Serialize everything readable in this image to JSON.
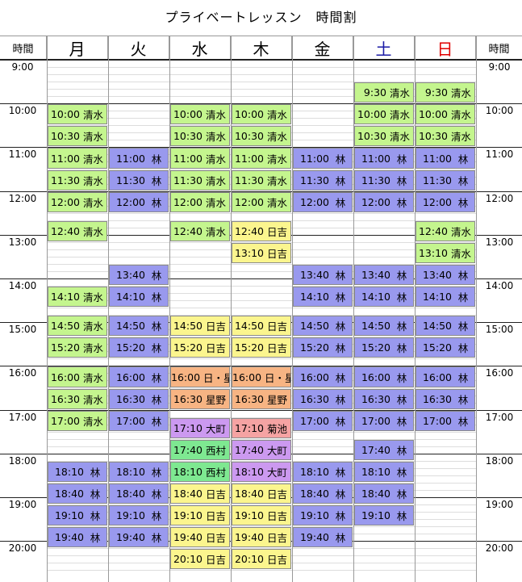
{
  "title": "プライベートレッスン　時間割",
  "time_header": "時間",
  "days": [
    {
      "label": "月",
      "color": "#000000"
    },
    {
      "label": "火",
      "color": "#000000"
    },
    {
      "label": "水",
      "color": "#000000"
    },
    {
      "label": "木",
      "color": "#000000"
    },
    {
      "label": "金",
      "color": "#000000"
    },
    {
      "label": "土",
      "color": "#1a1aa6"
    },
    {
      "label": "日",
      "color": "#e00000"
    }
  ],
  "hours": [
    "9:00",
    "10:00",
    "11:00",
    "12:00",
    "13:00",
    "14:00",
    "15:00",
    "16:00",
    "17:00",
    "18:00",
    "19:00",
    "20:00"
  ],
  "colors": {
    "green": "#c4f58e",
    "blue": "#9999ee",
    "yellow": "#fbf58e",
    "orange": "#f7b483",
    "purple": "#cc99f0",
    "pink": "#f5a3a3",
    "mint": "#7ee891"
  },
  "lessons": [
    {
      "day": 0,
      "time": "10:00",
      "start": "10:00",
      "end": "10:30",
      "name": "清水",
      "c": "green"
    },
    {
      "day": 0,
      "time": "10:30",
      "start": "10:30",
      "end": "11:00",
      "name": "清水",
      "c": "green"
    },
    {
      "day": 0,
      "time": "11:00",
      "start": "11:00",
      "end": "11:30",
      "name": "清水",
      "c": "green"
    },
    {
      "day": 0,
      "time": "11:30",
      "start": "11:30",
      "end": "12:00",
      "name": "清水",
      "c": "green"
    },
    {
      "day": 0,
      "time": "12:00",
      "start": "12:00",
      "end": "12:30",
      "name": "清水",
      "c": "green"
    },
    {
      "day": 0,
      "time": "12:40",
      "start": "12:40",
      "end": "13:10",
      "name": "清水",
      "c": "green"
    },
    {
      "day": 0,
      "time": "14:10",
      "start": "14:10",
      "end": "14:40",
      "name": "清水",
      "c": "green"
    },
    {
      "day": 0,
      "time": "14:50",
      "start": "14:50",
      "end": "15:20",
      "name": "清水",
      "c": "green"
    },
    {
      "day": 0,
      "time": "15:20",
      "start": "15:20",
      "end": "15:50",
      "name": "清水",
      "c": "green"
    },
    {
      "day": 0,
      "time": "16:00",
      "start": "16:00",
      "end": "16:30",
      "name": "清水",
      "c": "green"
    },
    {
      "day": 0,
      "time": "16:30",
      "start": "16:30",
      "end": "17:00",
      "name": "清水",
      "c": "green"
    },
    {
      "day": 0,
      "time": "17:00",
      "start": "17:00",
      "end": "17:30",
      "name": "清水",
      "c": "green"
    },
    {
      "day": 0,
      "time": "18:10",
      "start": "18:10",
      "end": "18:40",
      "name": "林",
      "c": "blue"
    },
    {
      "day": 0,
      "time": "18:40",
      "start": "18:40",
      "end": "19:10",
      "name": "林",
      "c": "blue"
    },
    {
      "day": 0,
      "time": "19:10",
      "start": "19:10",
      "end": "19:40",
      "name": "林",
      "c": "blue"
    },
    {
      "day": 0,
      "time": "19:40",
      "start": "19:40",
      "end": "20:10",
      "name": "林",
      "c": "blue"
    },
    {
      "day": 1,
      "time": "11:00",
      "start": "11:00",
      "end": "11:30",
      "name": "林",
      "c": "blue"
    },
    {
      "day": 1,
      "time": "11:30",
      "start": "11:30",
      "end": "12:00",
      "name": "林",
      "c": "blue"
    },
    {
      "day": 1,
      "time": "12:00",
      "start": "12:00",
      "end": "12:30",
      "name": "林",
      "c": "blue"
    },
    {
      "day": 1,
      "time": "13:40",
      "start": "13:40",
      "end": "14:10",
      "name": "林",
      "c": "blue"
    },
    {
      "day": 1,
      "time": "14:10",
      "start": "14:10",
      "end": "14:40",
      "name": "林",
      "c": "blue"
    },
    {
      "day": 1,
      "time": "14:50",
      "start": "14:50",
      "end": "15:20",
      "name": "林",
      "c": "blue"
    },
    {
      "day": 1,
      "time": "15:20",
      "start": "15:20",
      "end": "15:50",
      "name": "林",
      "c": "blue"
    },
    {
      "day": 1,
      "time": "16:00",
      "start": "16:00",
      "end": "16:30",
      "name": "林",
      "c": "blue"
    },
    {
      "day": 1,
      "time": "16:30",
      "start": "16:30",
      "end": "17:00",
      "name": "林",
      "c": "blue"
    },
    {
      "day": 1,
      "time": "17:00",
      "start": "17:00",
      "end": "17:30",
      "name": "林",
      "c": "blue"
    },
    {
      "day": 1,
      "time": "18:10",
      "start": "18:10",
      "end": "18:40",
      "name": "林",
      "c": "blue"
    },
    {
      "day": 1,
      "time": "18:40",
      "start": "18:40",
      "end": "19:10",
      "name": "林",
      "c": "blue"
    },
    {
      "day": 1,
      "time": "19:10",
      "start": "19:10",
      "end": "19:40",
      "name": "林",
      "c": "blue"
    },
    {
      "day": 1,
      "time": "19:40",
      "start": "19:40",
      "end": "20:10",
      "name": "林",
      "c": "blue"
    },
    {
      "day": 2,
      "time": "10:00",
      "start": "10:00",
      "end": "10:30",
      "name": "清水",
      "c": "green"
    },
    {
      "day": 2,
      "time": "10:30",
      "start": "10:30",
      "end": "11:00",
      "name": "清水",
      "c": "green"
    },
    {
      "day": 2,
      "time": "11:00",
      "start": "11:00",
      "end": "11:30",
      "name": "清水",
      "c": "green"
    },
    {
      "day": 2,
      "time": "11:30",
      "start": "11:30",
      "end": "12:00",
      "name": "清水",
      "c": "green"
    },
    {
      "day": 2,
      "time": "12:00",
      "start": "12:00",
      "end": "12:30",
      "name": "清水",
      "c": "green"
    },
    {
      "day": 2,
      "time": "12:40",
      "start": "12:40",
      "end": "13:10",
      "name": "清水",
      "c": "green"
    },
    {
      "day": 2,
      "time": "14:50",
      "start": "14:50",
      "end": "15:20",
      "name": "日吉",
      "c": "yellow"
    },
    {
      "day": 2,
      "time": "15:20",
      "start": "15:20",
      "end": "15:50",
      "name": "日吉",
      "c": "yellow"
    },
    {
      "day": 2,
      "time": "16:00",
      "start": "16:00",
      "end": "16:30",
      "name": "日・星",
      "c": "orange"
    },
    {
      "day": 2,
      "time": "16:30",
      "start": "16:30",
      "end": "17:00",
      "name": "星野",
      "c": "orange"
    },
    {
      "day": 2,
      "time": "17:10",
      "start": "17:10",
      "end": "17:40",
      "name": "大町",
      "c": "purple"
    },
    {
      "day": 2,
      "time": "17:40",
      "start": "17:40",
      "end": "18:10",
      "name": "西村",
      "c": "mint"
    },
    {
      "day": 2,
      "time": "18:10",
      "start": "18:10",
      "end": "18:40",
      "name": "西村",
      "c": "mint"
    },
    {
      "day": 2,
      "time": "18:40",
      "start": "18:40",
      "end": "19:10",
      "name": "日吉",
      "c": "yellow"
    },
    {
      "day": 2,
      "time": "19:10",
      "start": "19:10",
      "end": "19:40",
      "name": "日吉",
      "c": "yellow"
    },
    {
      "day": 2,
      "time": "19:40",
      "start": "19:40",
      "end": "20:10",
      "name": "日吉",
      "c": "yellow"
    },
    {
      "day": 2,
      "time": "20:10",
      "start": "20:10",
      "end": "20:40",
      "name": "日吉",
      "c": "yellow"
    },
    {
      "day": 3,
      "time": "10:00",
      "start": "10:00",
      "end": "10:30",
      "name": "清水",
      "c": "green"
    },
    {
      "day": 3,
      "time": "10:30",
      "start": "10:30",
      "end": "11:00",
      "name": "清水",
      "c": "green"
    },
    {
      "day": 3,
      "time": "11:00",
      "start": "11:00",
      "end": "11:30",
      "name": "清水",
      "c": "green"
    },
    {
      "day": 3,
      "time": "11:30",
      "start": "11:30",
      "end": "12:00",
      "name": "清水",
      "c": "green"
    },
    {
      "day": 3,
      "time": "12:00",
      "start": "12:00",
      "end": "12:30",
      "name": "清水",
      "c": "green"
    },
    {
      "day": 3,
      "time": "12:40",
      "start": "12:40",
      "end": "13:10",
      "name": "日吉",
      "c": "yellow"
    },
    {
      "day": 3,
      "time": "13:10",
      "start": "13:10",
      "end": "13:40",
      "name": "日吉",
      "c": "yellow"
    },
    {
      "day": 3,
      "time": "14:50",
      "start": "14:50",
      "end": "15:20",
      "name": "日吉",
      "c": "yellow"
    },
    {
      "day": 3,
      "time": "15:20",
      "start": "15:20",
      "end": "15:50",
      "name": "日吉",
      "c": "yellow"
    },
    {
      "day": 3,
      "time": "16:00",
      "start": "16:00",
      "end": "16:30",
      "name": "日・星",
      "c": "orange"
    },
    {
      "day": 3,
      "time": "16:30",
      "start": "16:30",
      "end": "17:00",
      "name": "星野",
      "c": "orange"
    },
    {
      "day": 3,
      "time": "17:10",
      "start": "17:10",
      "end": "17:40",
      "name": "菊池",
      "c": "pink"
    },
    {
      "day": 3,
      "time": "17:40",
      "start": "17:40",
      "end": "18:10",
      "name": "大町",
      "c": "purple"
    },
    {
      "day": 3,
      "time": "18:10",
      "start": "18:10",
      "end": "18:40",
      "name": "大町",
      "c": "purple"
    },
    {
      "day": 3,
      "time": "18:40",
      "start": "18:40",
      "end": "19:10",
      "name": "日吉",
      "c": "yellow"
    },
    {
      "day": 3,
      "time": "19:10",
      "start": "19:10",
      "end": "19:40",
      "name": "日吉",
      "c": "yellow"
    },
    {
      "day": 3,
      "time": "19:40",
      "start": "19:40",
      "end": "20:10",
      "name": "日吉",
      "c": "yellow"
    },
    {
      "day": 3,
      "time": "20:10",
      "start": "20:10",
      "end": "20:40",
      "name": "日吉",
      "c": "yellow"
    },
    {
      "day": 4,
      "time": "11:00",
      "start": "11:00",
      "end": "11:30",
      "name": "林",
      "c": "blue"
    },
    {
      "day": 4,
      "time": "11:30",
      "start": "11:30",
      "end": "12:00",
      "name": "林",
      "c": "blue"
    },
    {
      "day": 4,
      "time": "12:00",
      "start": "12:00",
      "end": "12:30",
      "name": "林",
      "c": "blue"
    },
    {
      "day": 4,
      "time": "13:40",
      "start": "13:40",
      "end": "14:10",
      "name": "林",
      "c": "blue"
    },
    {
      "day": 4,
      "time": "14:10",
      "start": "14:10",
      "end": "14:40",
      "name": "林",
      "c": "blue"
    },
    {
      "day": 4,
      "time": "14:50",
      "start": "14:50",
      "end": "15:20",
      "name": "林",
      "c": "blue"
    },
    {
      "day": 4,
      "time": "15:20",
      "start": "15:20",
      "end": "15:50",
      "name": "林",
      "c": "blue"
    },
    {
      "day": 4,
      "time": "16:00",
      "start": "16:00",
      "end": "16:30",
      "name": "林",
      "c": "blue"
    },
    {
      "day": 4,
      "time": "16:30",
      "start": "16:30",
      "end": "17:00",
      "name": "林",
      "c": "blue"
    },
    {
      "day": 4,
      "time": "17:00",
      "start": "17:00",
      "end": "17:30",
      "name": "林",
      "c": "blue"
    },
    {
      "day": 4,
      "time": "18:10",
      "start": "18:10",
      "end": "18:40",
      "name": "林",
      "c": "blue"
    },
    {
      "day": 4,
      "time": "18:40",
      "start": "18:40",
      "end": "19:10",
      "name": "林",
      "c": "blue"
    },
    {
      "day": 4,
      "time": "19:10",
      "start": "19:10",
      "end": "19:40",
      "name": "林",
      "c": "blue"
    },
    {
      "day": 4,
      "time": "19:40",
      "start": "19:40",
      "end": "20:10",
      "name": "林",
      "c": "blue"
    },
    {
      "day": 5,
      "time": "9:30",
      "start": "9:30",
      "end": "10:00",
      "name": "清水",
      "c": "green"
    },
    {
      "day": 5,
      "time": "10:00",
      "start": "10:00",
      "end": "10:30",
      "name": "清水",
      "c": "green"
    },
    {
      "day": 5,
      "time": "10:30",
      "start": "10:30",
      "end": "11:00",
      "name": "清水",
      "c": "green"
    },
    {
      "day": 5,
      "time": "11:00",
      "start": "11:00",
      "end": "11:30",
      "name": "林",
      "c": "blue"
    },
    {
      "day": 5,
      "time": "11:30",
      "start": "11:30",
      "end": "12:00",
      "name": "林",
      "c": "blue"
    },
    {
      "day": 5,
      "time": "12:00",
      "start": "12:00",
      "end": "12:30",
      "name": "林",
      "c": "blue"
    },
    {
      "day": 5,
      "time": "13:40",
      "start": "13:40",
      "end": "14:10",
      "name": "林",
      "c": "blue"
    },
    {
      "day": 5,
      "time": "14:10",
      "start": "14:10",
      "end": "14:40",
      "name": "林",
      "c": "blue"
    },
    {
      "day": 5,
      "time": "14:50",
      "start": "14:50",
      "end": "15:20",
      "name": "林",
      "c": "blue"
    },
    {
      "day": 5,
      "time": "15:20",
      "start": "15:20",
      "end": "15:50",
      "name": "林",
      "c": "blue"
    },
    {
      "day": 5,
      "time": "16:00",
      "start": "16:00",
      "end": "16:30",
      "name": "林",
      "c": "blue"
    },
    {
      "day": 5,
      "time": "16:30",
      "start": "16:30",
      "end": "17:00",
      "name": "林",
      "c": "blue"
    },
    {
      "day": 5,
      "time": "17:00",
      "start": "17:00",
      "end": "17:30",
      "name": "林",
      "c": "blue"
    },
    {
      "day": 5,
      "time": "17:40",
      "start": "17:40",
      "end": "18:10",
      "name": "林",
      "c": "blue"
    },
    {
      "day": 5,
      "time": "18:10",
      "start": "18:10",
      "end": "18:40",
      "name": "林",
      "c": "blue"
    },
    {
      "day": 5,
      "time": "18:40",
      "start": "18:40",
      "end": "19:10",
      "name": "林",
      "c": "blue"
    },
    {
      "day": 5,
      "time": "19:10",
      "start": "19:10",
      "end": "19:40",
      "name": "林",
      "c": "blue"
    },
    {
      "day": 6,
      "time": "9:30",
      "start": "9:30",
      "end": "10:00",
      "name": "清水",
      "c": "green"
    },
    {
      "day": 6,
      "time": "10:00",
      "start": "10:00",
      "end": "10:30",
      "name": "清水",
      "c": "green"
    },
    {
      "day": 6,
      "time": "10:30",
      "start": "10:30",
      "end": "11:00",
      "name": "清水",
      "c": "green"
    },
    {
      "day": 6,
      "time": "11:00",
      "start": "11:00",
      "end": "11:30",
      "name": "林",
      "c": "blue"
    },
    {
      "day": 6,
      "time": "11:30",
      "start": "11:30",
      "end": "12:00",
      "name": "林",
      "c": "blue"
    },
    {
      "day": 6,
      "time": "12:00",
      "start": "12:00",
      "end": "12:30",
      "name": "林",
      "c": "blue"
    },
    {
      "day": 6,
      "time": "12:40",
      "start": "12:40",
      "end": "13:10",
      "name": "清水",
      "c": "green"
    },
    {
      "day": 6,
      "time": "13:10",
      "start": "13:10",
      "end": "13:40",
      "name": "清水",
      "c": "green"
    },
    {
      "day": 6,
      "time": "13:40",
      "start": "13:40",
      "end": "14:10",
      "name": "林",
      "c": "blue"
    },
    {
      "day": 6,
      "time": "14:10",
      "start": "14:10",
      "end": "14:40",
      "name": "林",
      "c": "blue"
    },
    {
      "day": 6,
      "time": "14:50",
      "start": "14:50",
      "end": "15:20",
      "name": "林",
      "c": "blue"
    },
    {
      "day": 6,
      "time": "15:20",
      "start": "15:20",
      "end": "15:50",
      "name": "林",
      "c": "blue"
    },
    {
      "day": 6,
      "time": "16:00",
      "start": "16:00",
      "end": "16:30",
      "name": "林",
      "c": "blue"
    },
    {
      "day": 6,
      "time": "16:30",
      "start": "16:30",
      "end": "17:00",
      "name": "林",
      "c": "blue"
    },
    {
      "day": 6,
      "time": "17:00",
      "start": "17:00",
      "end": "17:30",
      "name": "林",
      "c": "blue"
    }
  ]
}
